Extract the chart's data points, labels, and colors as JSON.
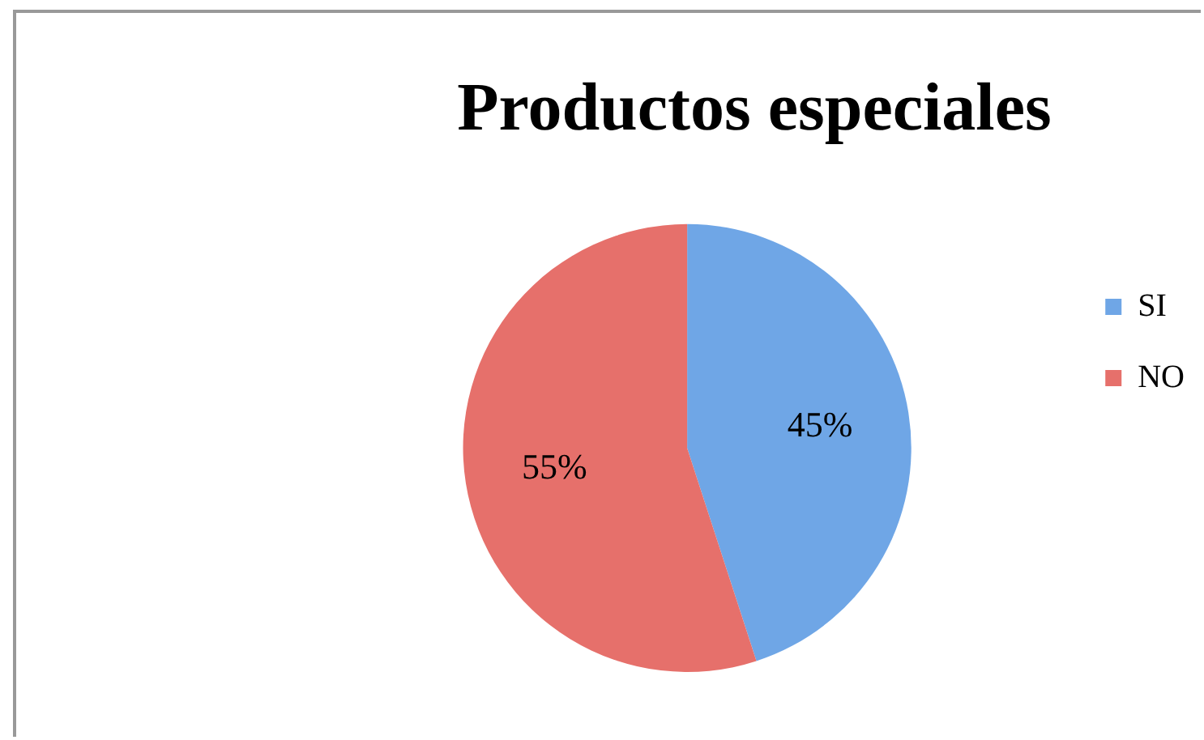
{
  "chart_data": {
    "type": "pie",
    "title": "Productos especiales",
    "categories": [
      "SI",
      "NO"
    ],
    "values": [
      45,
      55
    ],
    "colors": [
      "#6fa6e6",
      "#e6706b"
    ],
    "value_labels": [
      "45%",
      "55%"
    ],
    "legend": "right"
  }
}
